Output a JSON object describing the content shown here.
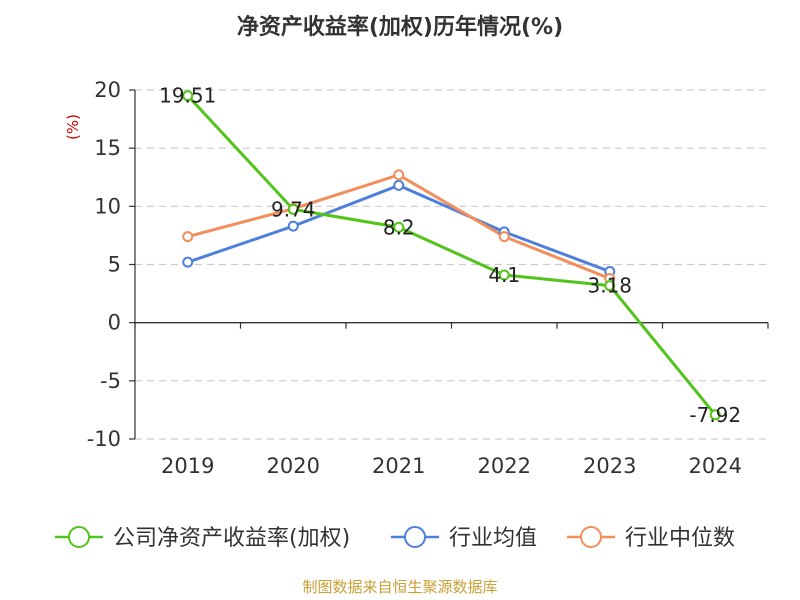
{
  "chart_data": {
    "type": "line",
    "title": "净资产收益率(加权)历年情况(%)",
    "unit_label": "(%)",
    "categories": [
      "2019",
      "2020",
      "2021",
      "2022",
      "2023",
      "2024"
    ],
    "ylim": [
      -10,
      20
    ],
    "yticks": [
      20,
      15,
      10,
      5,
      0,
      -5,
      -10
    ],
    "grid": true,
    "legend_position": "bottom",
    "series": [
      {
        "name": "公司净资产收益率(加权)",
        "color": "#52c41a",
        "values": [
          19.51,
          9.74,
          8.2,
          4.1,
          3.18,
          -7.92
        ],
        "labels": [
          "19.51",
          "9.74",
          "8.2",
          "4.1",
          "3.18",
          "-7.92"
        ]
      },
      {
        "name": "行业均值",
        "color": "#4e7fdb",
        "values": [
          5.2,
          8.3,
          11.8,
          7.8,
          4.4,
          null
        ]
      },
      {
        "name": "行业中位数",
        "color": "#f28e5c",
        "values": [
          7.4,
          9.8,
          12.7,
          7.4,
          3.8,
          null
        ]
      }
    ]
  },
  "source": "制图数据来自恒生聚源数据库",
  "colors": {
    "axis": "#333333",
    "grid": "#cccccc",
    "unit": "#cc0000",
    "source": "#c8a035"
  }
}
